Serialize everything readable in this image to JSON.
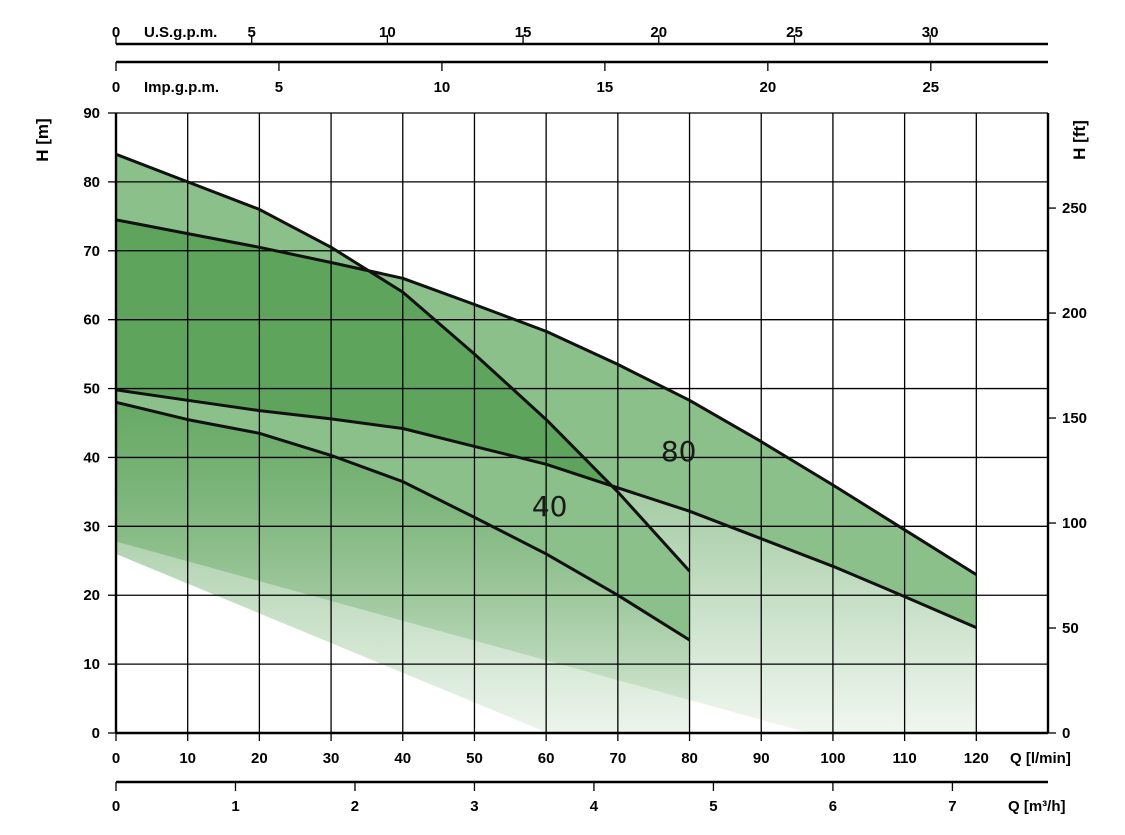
{
  "chart_data": {
    "type": "area",
    "x_axis": {
      "label": "Q [l/min]",
      "range": [
        0,
        130
      ],
      "ticks": [
        0,
        10,
        20,
        30,
        40,
        50,
        60,
        70,
        80,
        90,
        100,
        110,
        120
      ]
    },
    "x_axis_secondary_m3h": {
      "label": "Q [m³/h]",
      "range": [
        0,
        7.8
      ],
      "ticks": [
        0,
        1,
        2,
        3,
        4,
        5,
        6,
        7
      ]
    },
    "x_axis_top_us": {
      "label": "U.S.g.p.m.",
      "ticks": [
        0,
        5,
        10,
        15,
        20,
        25,
        30
      ]
    },
    "x_axis_top_imp": {
      "label": "Imp.g.p.m.",
      "ticks": [
        0,
        5,
        10,
        15,
        20,
        25
      ]
    },
    "y_axis": {
      "label": "H [m]",
      "range": [
        0,
        90
      ],
      "ticks": [
        0,
        10,
        20,
        30,
        40,
        50,
        60,
        70,
        80,
        90
      ]
    },
    "y_axis_secondary_ft": {
      "label": "H [ft]",
      "ticks": [
        0,
        50,
        100,
        150,
        200,
        250
      ]
    },
    "grid": true,
    "series": [
      {
        "name": "40",
        "upper": [
          [
            0,
            84
          ],
          [
            10,
            80
          ],
          [
            20,
            76
          ],
          [
            30,
            70.5
          ],
          [
            40,
            64
          ],
          [
            50,
            55
          ],
          [
            60,
            45.5
          ],
          [
            70,
            35
          ],
          [
            80,
            23.5
          ]
        ],
        "lower": [
          [
            0,
            48
          ],
          [
            10,
            45.5
          ],
          [
            20,
            43.5
          ],
          [
            30,
            40.3
          ],
          [
            40,
            36.5
          ],
          [
            50,
            31.3
          ],
          [
            60,
            26
          ],
          [
            70,
            20
          ],
          [
            80,
            13.5
          ]
        ]
      },
      {
        "name": "80",
        "upper": [
          [
            0,
            74.5
          ],
          [
            10,
            72.5
          ],
          [
            20,
            70.5
          ],
          [
            30,
            68.3
          ],
          [
            40,
            66
          ],
          [
            50,
            62.2
          ],
          [
            60,
            58.3
          ],
          [
            70,
            53.5
          ],
          [
            80,
            48.3
          ],
          [
            90,
            42.3
          ],
          [
            100,
            36
          ],
          [
            110,
            29.5
          ],
          [
            120,
            23
          ]
        ],
        "lower": [
          [
            0,
            49.8
          ],
          [
            10,
            48.3
          ],
          [
            20,
            46.8
          ],
          [
            30,
            45.6
          ],
          [
            40,
            44.2
          ],
          [
            50,
            41.6
          ],
          [
            60,
            39
          ],
          [
            70,
            35.6
          ],
          [
            80,
            32.2
          ],
          [
            90,
            28.2
          ],
          [
            100,
            24.2
          ],
          [
            110,
            19.8
          ],
          [
            120,
            15.3
          ]
        ]
      }
    ],
    "colors": {
      "light_band": "#8cc08a",
      "dark_band": "#5ea45c"
    }
  }
}
